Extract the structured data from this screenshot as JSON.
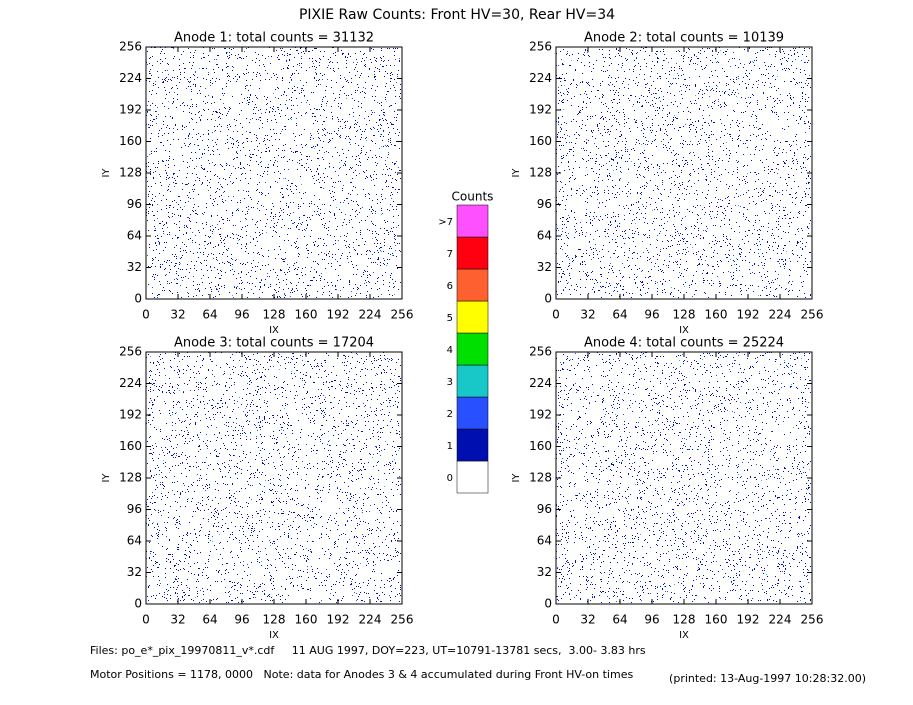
{
  "chart_data": [
    {
      "type": "heatmap",
      "title": "Anode 1: total counts = 31132",
      "x_label": "IX",
      "y_label": "IY",
      "xlim": [
        0,
        256
      ],
      "ylim": [
        0,
        256
      ],
      "xticks": [
        0,
        32,
        64,
        96,
        128,
        160,
        192,
        224,
        256
      ],
      "yticks": [
        0,
        32,
        64,
        96,
        128,
        160,
        192,
        224,
        256
      ]
    },
    {
      "type": "heatmap",
      "title": "Anode 2: total counts = 10139",
      "x_label": "IX",
      "y_label": "IY",
      "xlim": [
        0,
        256
      ],
      "ylim": [
        0,
        256
      ],
      "xticks": [
        0,
        32,
        64,
        96,
        128,
        160,
        192,
        224,
        256
      ],
      "yticks": [
        0,
        32,
        64,
        96,
        128,
        160,
        192,
        224,
        256
      ]
    },
    {
      "type": "heatmap",
      "title": "Anode 3: total counts = 17204",
      "x_label": "IX",
      "y_label": "IY",
      "xlim": [
        0,
        256
      ],
      "ylim": [
        0,
        256
      ],
      "xticks": [
        0,
        32,
        64,
        96,
        128,
        160,
        192,
        224,
        256
      ],
      "yticks": [
        0,
        32,
        64,
        96,
        128,
        160,
        192,
        224,
        256
      ]
    },
    {
      "type": "heatmap",
      "title": "Anode 4: total counts = 25224",
      "x_label": "IX",
      "y_label": "IY",
      "xlim": [
        0,
        256
      ],
      "ylim": [
        0,
        256
      ],
      "xticks": [
        0,
        32,
        64,
        96,
        128,
        160,
        192,
        224,
        256
      ],
      "yticks": [
        0,
        32,
        64,
        96,
        128,
        160,
        192,
        224,
        256
      ]
    }
  ],
  "header": {
    "title": "PIXIE Raw Counts:  Front HV=30, Rear HV=34"
  },
  "colorbar": {
    "title": "Counts",
    "levels": [
      {
        "label": "0",
        "color": "#ffffff"
      },
      {
        "label": "1",
        "color": "#0010b0"
      },
      {
        "label": "2",
        "color": "#2850ff"
      },
      {
        "label": "3",
        "color": "#18c8c8"
      },
      {
        "label": "4",
        "color": "#00e000"
      },
      {
        "label": "5",
        "color": "#ffff00"
      },
      {
        "label": "6",
        "color": "#ff6030"
      },
      {
        "label": "7",
        "color": "#ff0010"
      },
      {
        "label": ">7",
        "color": "#ff50ff"
      }
    ]
  },
  "footer": {
    "files": "Files: po_e*_pix_19970811_v*.cdf     11 AUG 1997, DOY=223, UT=10791-13781 secs,  3.00- 3.83 hrs",
    "motor": "Motor Positions = 1178, 0000   Note: data for Anodes 3 & 4 accumulated during Front HV-on times",
    "printed": "(printed: 13-Aug-1997 10:28:32.00)"
  }
}
